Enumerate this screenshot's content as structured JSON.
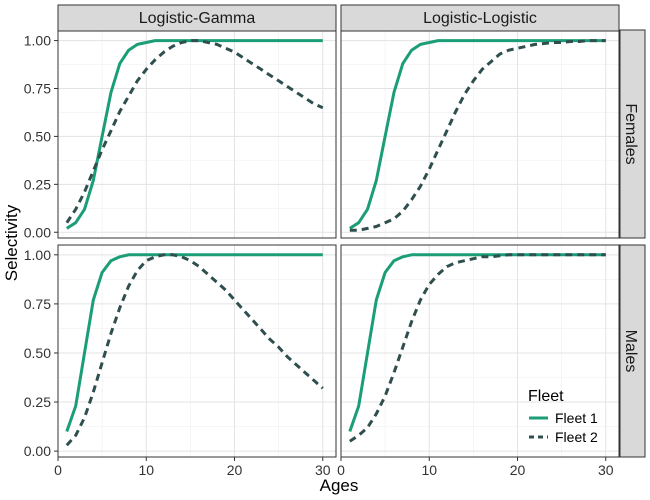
{
  "chart_data": {
    "type": "line",
    "xlabel": "Ages",
    "ylabel": "Selectivity",
    "xlim": [
      0,
      31.5
    ],
    "ylim": [
      -0.03,
      1.05
    ],
    "xticks": [
      0,
      10,
      20,
      30
    ],
    "yticks": [
      0.0,
      0.25,
      0.5,
      0.75,
      1.0
    ],
    "ytick_labels": [
      "0.00",
      "0.25",
      "0.50",
      "0.75",
      "1.00"
    ],
    "grid": true,
    "legend": {
      "title": "Fleet",
      "placement": "bottom-right-inside",
      "entries": [
        {
          "name": "Fleet 1",
          "color": "#1b9e77",
          "dash": "solid"
        },
        {
          "name": "Fleet 2",
          "color": "#2f4f4f",
          "dash": "dashed"
        }
      ]
    },
    "columns": [
      "Logistic-Gamma",
      "Logistic-Logistic"
    ],
    "rows": [
      "Females",
      "Males"
    ],
    "x": [
      1,
      2,
      3,
      4,
      5,
      6,
      7,
      8,
      9,
      10,
      11,
      12,
      13,
      14,
      15,
      16,
      17,
      18,
      19,
      20,
      21,
      22,
      23,
      24,
      25,
      26,
      27,
      28,
      29,
      30
    ],
    "panels": [
      {
        "column": "Logistic-Gamma",
        "row": "Females",
        "series": [
          {
            "name": "Fleet 1",
            "values": [
              0.02,
              0.05,
              0.12,
              0.27,
              0.5,
              0.73,
              0.88,
              0.95,
              0.98,
              0.99,
              1.0,
              1.0,
              1.0,
              1.0,
              1.0,
              1.0,
              1.0,
              1.0,
              1.0,
              1.0,
              1.0,
              1.0,
              1.0,
              1.0,
              1.0,
              1.0,
              1.0,
              1.0,
              1.0,
              1.0
            ]
          },
          {
            "name": "Fleet 2",
            "values": [
              0.05,
              0.12,
              0.21,
              0.32,
              0.43,
              0.53,
              0.63,
              0.71,
              0.79,
              0.85,
              0.9,
              0.94,
              0.97,
              0.99,
              1.0,
              1.0,
              0.99,
              0.98,
              0.96,
              0.94,
              0.91,
              0.88,
              0.85,
              0.82,
              0.79,
              0.76,
              0.73,
              0.7,
              0.67,
              0.65
            ]
          }
        ]
      },
      {
        "column": "Logistic-Logistic",
        "row": "Females",
        "series": [
          {
            "name": "Fleet 1",
            "values": [
              0.02,
              0.05,
              0.12,
              0.27,
              0.5,
              0.73,
              0.88,
              0.95,
              0.98,
              0.99,
              1.0,
              1.0,
              1.0,
              1.0,
              1.0,
              1.0,
              1.0,
              1.0,
              1.0,
              1.0,
              1.0,
              1.0,
              1.0,
              1.0,
              1.0,
              1.0,
              1.0,
              1.0,
              1.0,
              1.0
            ]
          },
          {
            "name": "Fleet 2",
            "values": [
              0.01,
              0.01,
              0.02,
              0.03,
              0.05,
              0.07,
              0.11,
              0.17,
              0.24,
              0.33,
              0.43,
              0.53,
              0.63,
              0.72,
              0.79,
              0.85,
              0.89,
              0.93,
              0.95,
              0.96,
              0.97,
              0.98,
              0.985,
              0.99,
              0.99,
              0.995,
              0.995,
              1.0,
              1.0,
              1.0
            ]
          }
        ]
      },
      {
        "column": "Logistic-Gamma",
        "row": "Males",
        "series": [
          {
            "name": "Fleet 1",
            "values": [
              0.1,
              0.23,
              0.5,
              0.77,
              0.91,
              0.97,
              0.99,
              1.0,
              1.0,
              1.0,
              1.0,
              1.0,
              1.0,
              1.0,
              1.0,
              1.0,
              1.0,
              1.0,
              1.0,
              1.0,
              1.0,
              1.0,
              1.0,
              1.0,
              1.0,
              1.0,
              1.0,
              1.0,
              1.0,
              1.0
            ]
          },
          {
            "name": "Fleet 2",
            "values": [
              0.03,
              0.08,
              0.17,
              0.3,
              0.45,
              0.6,
              0.73,
              0.84,
              0.92,
              0.97,
              0.99,
              1.0,
              1.0,
              0.99,
              0.97,
              0.94,
              0.9,
              0.86,
              0.82,
              0.77,
              0.72,
              0.67,
              0.62,
              0.57,
              0.53,
              0.48,
              0.44,
              0.4,
              0.36,
              0.32
            ]
          }
        ]
      },
      {
        "column": "Logistic-Logistic",
        "row": "Males",
        "series": [
          {
            "name": "Fleet 1",
            "values": [
              0.1,
              0.23,
              0.5,
              0.77,
              0.91,
              0.97,
              0.99,
              1.0,
              1.0,
              1.0,
              1.0,
              1.0,
              1.0,
              1.0,
              1.0,
              1.0,
              1.0,
              1.0,
              1.0,
              1.0,
              1.0,
              1.0,
              1.0,
              1.0,
              1.0,
              1.0,
              1.0,
              1.0,
              1.0,
              1.0
            ]
          },
          {
            "name": "Fleet 2",
            "values": [
              0.05,
              0.08,
              0.12,
              0.19,
              0.28,
              0.4,
              0.53,
              0.66,
              0.77,
              0.85,
              0.9,
              0.94,
              0.96,
              0.97,
              0.98,
              0.99,
              0.99,
              0.995,
              1.0,
              1.0,
              1.0,
              1.0,
              1.0,
              1.0,
              1.0,
              1.0,
              1.0,
              1.0,
              1.0,
              1.0
            ]
          }
        ]
      }
    ]
  }
}
